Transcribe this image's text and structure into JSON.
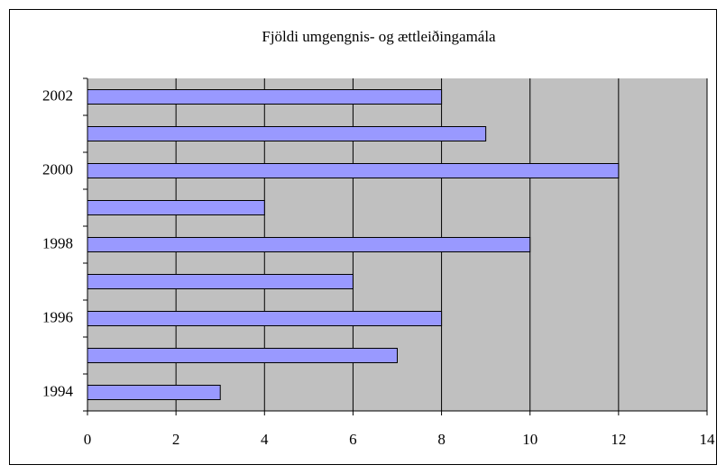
{
  "chart_data": {
    "type": "barh",
    "title": "Fjöldi umgengnis- og ættleiðingamála",
    "categories": [
      "1994",
      null,
      "1996",
      null,
      "1998",
      null,
      "2000",
      null,
      "2002"
    ],
    "values": [
      3,
      7,
      8,
      6,
      10,
      4,
      12,
      9,
      8
    ],
    "color": "#9999ff",
    "background": "#c0c0c0",
    "xlim": [
      0,
      14
    ],
    "xticks": [
      0,
      2,
      4,
      6,
      8,
      10,
      12,
      14
    ],
    "grid": true
  }
}
